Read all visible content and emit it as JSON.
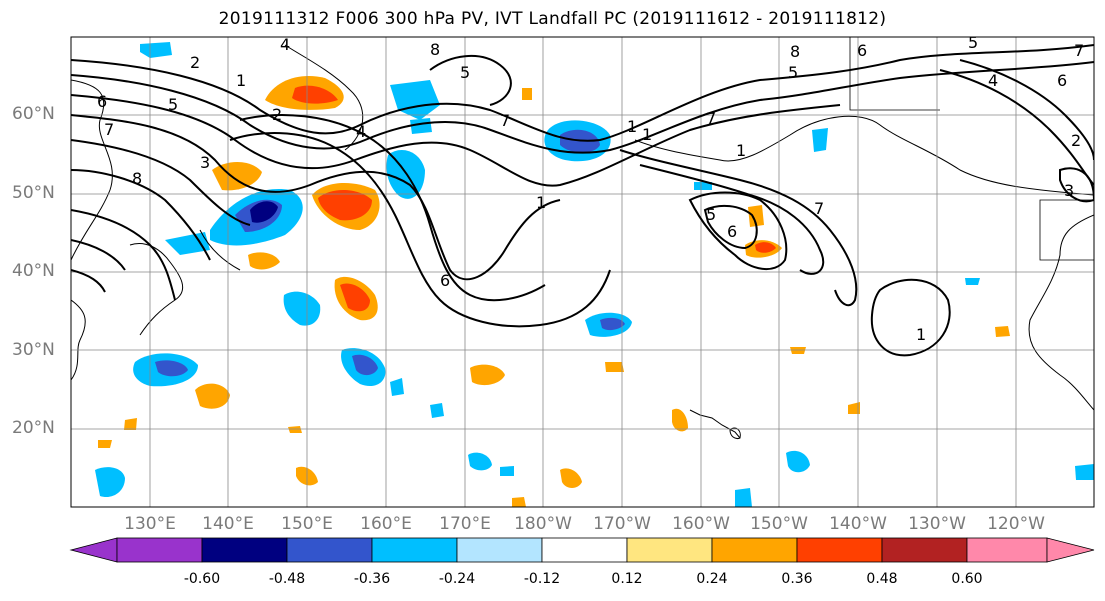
{
  "title": "2019111312 F006 300 hPa PV, IVT Landfall PC (2019111612 - 2019111812)",
  "lat_labels": [
    "60°N",
    "50°N",
    "40°N",
    "30°N",
    "20°N"
  ],
  "lon_labels": [
    "130°E",
    "140°E",
    "150°E",
    "160°E",
    "170°E",
    "180°W",
    "170°W",
    "160°W",
    "150°W",
    "140°W",
    "130°W",
    "120°W"
  ],
  "map_extent": {
    "lon_min": 120,
    "lon_max": 250.5,
    "lat_min": 10,
    "lat_max": 70
  },
  "colorbar": {
    "tick_labels": [
      "-0.60",
      "-0.48",
      "-0.36",
      "-0.24",
      "-0.12",
      "0.12",
      "0.24",
      "0.36",
      "0.48",
      "0.60"
    ],
    "colors": [
      "#9933cc",
      "#000080",
      "#3355cc",
      "#00bfff",
      "#b3e5ff",
      "#ffffff",
      "#ffe680",
      "#ffa500",
      "#ff4000",
      "#b22222",
      "#ff88aa"
    ]
  },
  "contour_labels": [
    "4",
    "8",
    "5",
    "2",
    "1",
    "6",
    "5",
    "7",
    "8",
    "1",
    "2",
    "3",
    "4",
    "6",
    "5",
    "6",
    "1",
    "7",
    "6",
    "5",
    "4",
    "7",
    "8",
    "6",
    "5",
    "1",
    "7",
    "2",
    "1",
    "3",
    "1",
    "7"
  ]
}
